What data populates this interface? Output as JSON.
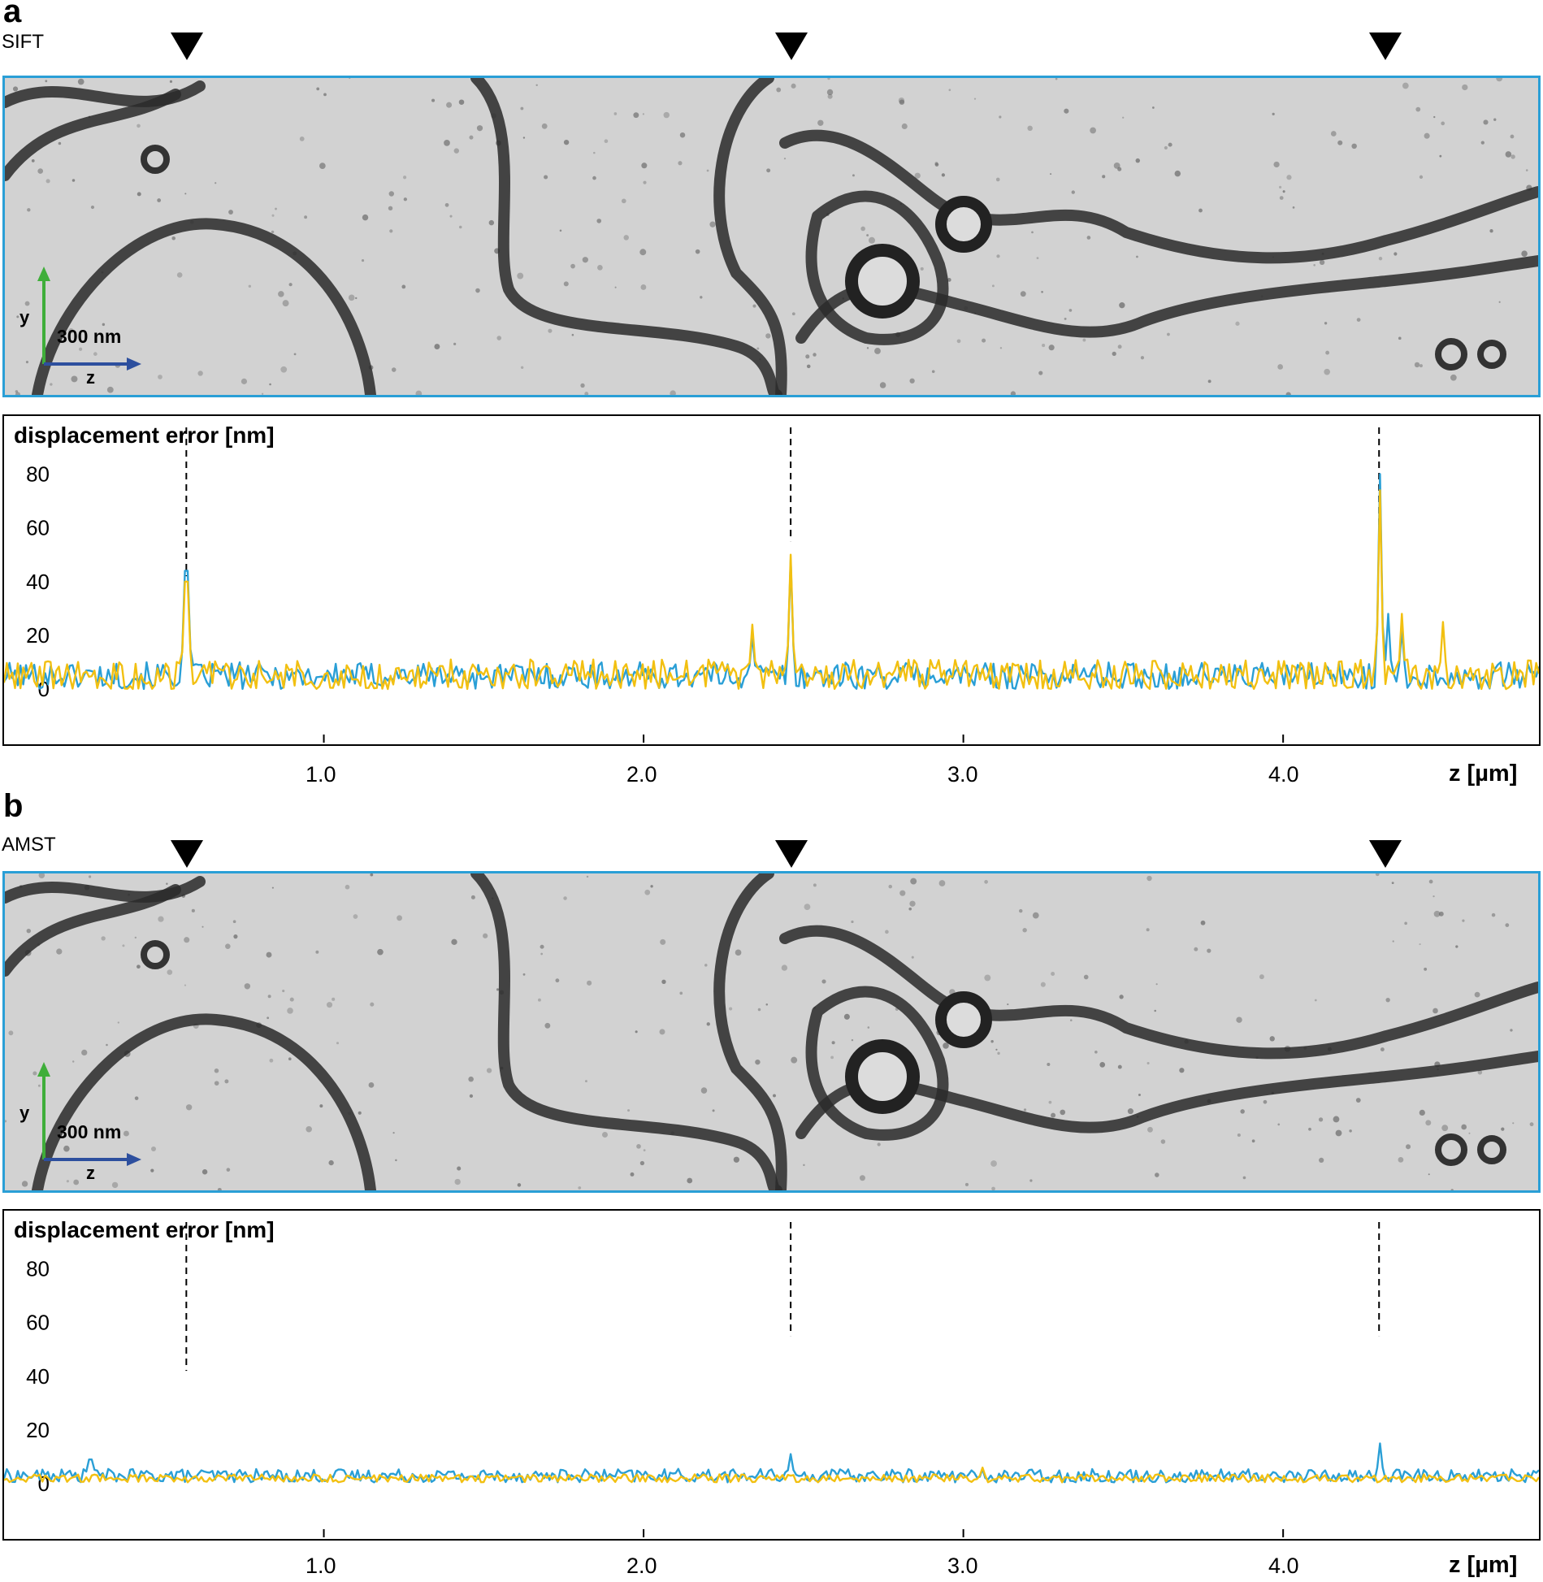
{
  "panels": [
    {
      "letter": "a",
      "method": "SIFT",
      "scale_bar": {
        "label": "300 nm",
        "y_axis": "y",
        "z_axis": "z"
      },
      "plot": {
        "title": "displacement error [nm]",
        "xlabel": "z [µm]"
      }
    },
    {
      "letter": "b",
      "method": "AMST",
      "scale_bar": {
        "label": "300 nm",
        "y_axis": "y",
        "z_axis": "z"
      },
      "plot": {
        "title": "displacement error [nm]",
        "xlabel": "z [µm]"
      }
    }
  ],
  "colors": {
    "frame": "#2a9fd6",
    "series_blue": "#2a9fd6",
    "series_yellow": "#f2c011",
    "scale_y": "#3fae3a",
    "scale_z": "#2d4f9e"
  },
  "chart_data": [
    {
      "type": "line",
      "title": "displacement error [nm]",
      "xlabel": "z [µm]",
      "ylabel": "",
      "xlim": [
        0,
        4.8
      ],
      "ylim": [
        0,
        85
      ],
      "yticks": [
        "0",
        "20",
        "40",
        "60",
        "80"
      ],
      "xticks": [
        "1.0",
        "2.0",
        "3.0",
        "4.0"
      ],
      "marker_z": [
        0.57,
        2.46,
        4.3
      ],
      "series": [
        {
          "baseline": 5,
          "noise": 5,
          "peaks": [
            [
              0.57,
              44
            ],
            [
              2.34,
              20
            ],
            [
              2.46,
              48
            ],
            [
              4.3,
              80
            ],
            [
              4.33,
              28
            ],
            [
              4.37,
              22
            ]
          ]
        },
        {
          "baseline": 5,
          "noise": 6,
          "peaks": [
            [
              0.57,
              40
            ],
            [
              2.34,
              24
            ],
            [
              2.46,
              50
            ],
            [
              4.3,
              74
            ],
            [
              4.37,
              28
            ],
            [
              4.5,
              25
            ]
          ]
        }
      ]
    },
    {
      "type": "line",
      "title": "displacement error [nm]",
      "xlabel": "z [µm]",
      "ylabel": "",
      "xlim": [
        0,
        4.8
      ],
      "ylim": [
        0,
        85
      ],
      "yticks": [
        "0",
        "20",
        "40",
        "60",
        "80"
      ],
      "xticks": [
        "1.0",
        "2.0",
        "3.0",
        "4.0"
      ],
      "marker_z": [
        0.57,
        2.46,
        4.3
      ],
      "series": [
        {
          "baseline": 3,
          "noise": 2.5,
          "peaks": [
            [
              0.27,
              9
            ],
            [
              2.46,
              11
            ],
            [
              4.3,
              15
            ]
          ]
        },
        {
          "baseline": 2,
          "noise": 1.5,
          "peaks": [
            [
              3.06,
              6
            ]
          ]
        }
      ]
    }
  ]
}
